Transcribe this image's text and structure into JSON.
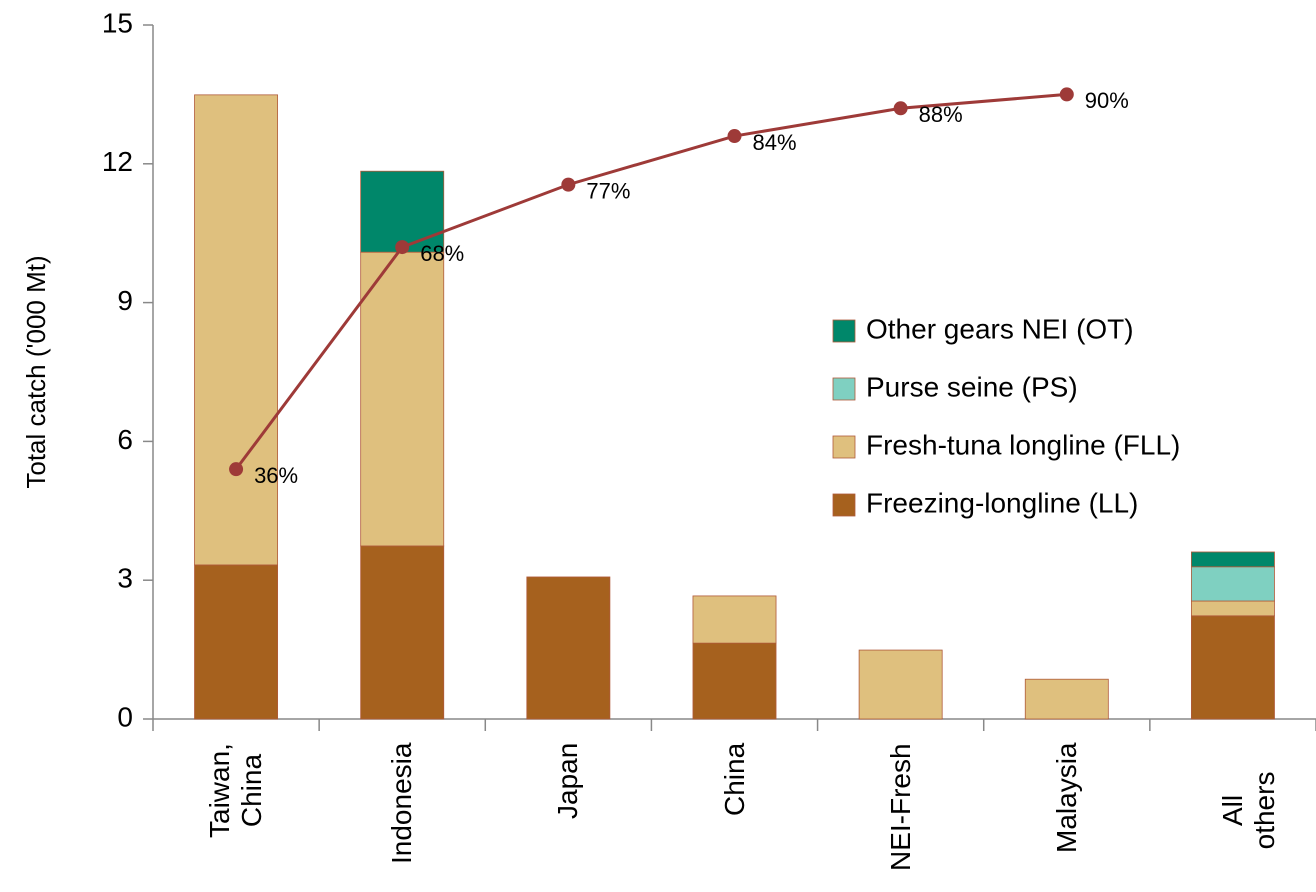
{
  "chart_data": {
    "type": "bar",
    "stacked": true,
    "ylabel": "Total catch ('000 Mt)",
    "categories": [
      "Taiwan,\nChina",
      "Indonesia",
      "Japan",
      "China",
      "NEI-Fresh",
      "Malaysia",
      "All others"
    ],
    "series": [
      {
        "name": "Freezing-longline (LL)",
        "color": "#a6611e",
        "values": [
          3.33,
          3.74,
          3.07,
          1.64,
          0,
          0,
          2.23
        ]
      },
      {
        "name": "Fresh-tuna longline (FLL)",
        "color": "#dfc07e",
        "values": [
          10.16,
          6.35,
          0,
          1.02,
          1.49,
          0.86,
          0.32
        ]
      },
      {
        "name": "Purse seine (PS)",
        "color": "#7fd0c1",
        "values": [
          0,
          0,
          0,
          0,
          0,
          0,
          0.74
        ]
      },
      {
        "name": "Other gears NEI (OT)",
        "color": "#00876a",
        "values": [
          0,
          1.75,
          0,
          0,
          0,
          0,
          0.32
        ]
      }
    ],
    "line": {
      "type": "line",
      "axis": "y2",
      "color": "#9e3a38",
      "values": [
        36,
        68,
        77,
        84,
        88,
        90,
        null
      ],
      "value_labels": [
        "36%",
        "68%",
        "77%",
        "84%",
        "88%",
        "90%",
        null
      ]
    },
    "ylim": [
      0,
      15
    ],
    "yticks": [
      0,
      3,
      6,
      9,
      12,
      15
    ],
    "y2lim": [
      0,
      100
    ],
    "legend": "right"
  }
}
